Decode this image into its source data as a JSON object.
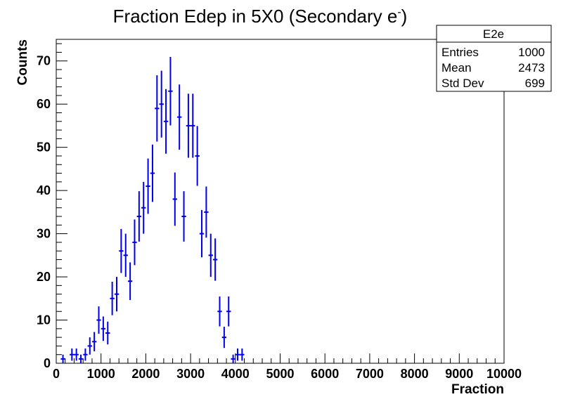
{
  "chart_data": {
    "type": "scatter",
    "title": "Fraction Edep in 5X0 (Secondary e",
    "title_superscript": "-",
    "title_close": ")",
    "xlabel": "Fraction",
    "ylabel": "Counts",
    "xlim": [
      0,
      10000
    ],
    "ylim": [
      0,
      75
    ],
    "x_ticks": [
      0,
      1000,
      2000,
      3000,
      4000,
      5000,
      6000,
      7000,
      8000,
      9000,
      10000
    ],
    "y_ticks": [
      0,
      10,
      20,
      30,
      40,
      50,
      60,
      70
    ],
    "x_tick_labels": [
      "0",
      "1000",
      "2000",
      "3000",
      "4000",
      "5000",
      "6000",
      "7000",
      "8000",
      "9000",
      "10000"
    ],
    "y_tick_labels": [
      "0",
      "10",
      "20",
      "30",
      "40",
      "50",
      "60",
      "70"
    ],
    "bin_width": 100,
    "marker_color": "#0000ee",
    "series": [
      {
        "x": [
          150,
          350,
          450,
          550,
          650,
          750,
          850,
          950,
          1050,
          1150,
          1250,
          1350,
          1450,
          1550,
          1650,
          1750,
          1850,
          1950,
          2050,
          2150,
          2250,
          2350,
          2450,
          2550,
          2650,
          2750,
          2850,
          2950,
          3050,
          3150,
          3250,
          3350,
          3450,
          3550,
          3650,
          3750,
          3850,
          3950,
          4050,
          4150
        ],
        "y": [
          1,
          2,
          2,
          1,
          2,
          4,
          5,
          10,
          8,
          7,
          15,
          16,
          26,
          25,
          19,
          28,
          34,
          36,
          41,
          44,
          59,
          60,
          56,
          63,
          38,
          57,
          34,
          55,
          55,
          48,
          30,
          35,
          25,
          24,
          12,
          6,
          12,
          1,
          2,
          2
        ]
      }
    ],
    "stats_box": {
      "name": "E2e",
      "rows": [
        {
          "label": "Entries",
          "value": "1000"
        },
        {
          "label": "Mean",
          "value": "2473"
        },
        {
          "label": "Std Dev",
          "value": "699"
        }
      ]
    }
  }
}
